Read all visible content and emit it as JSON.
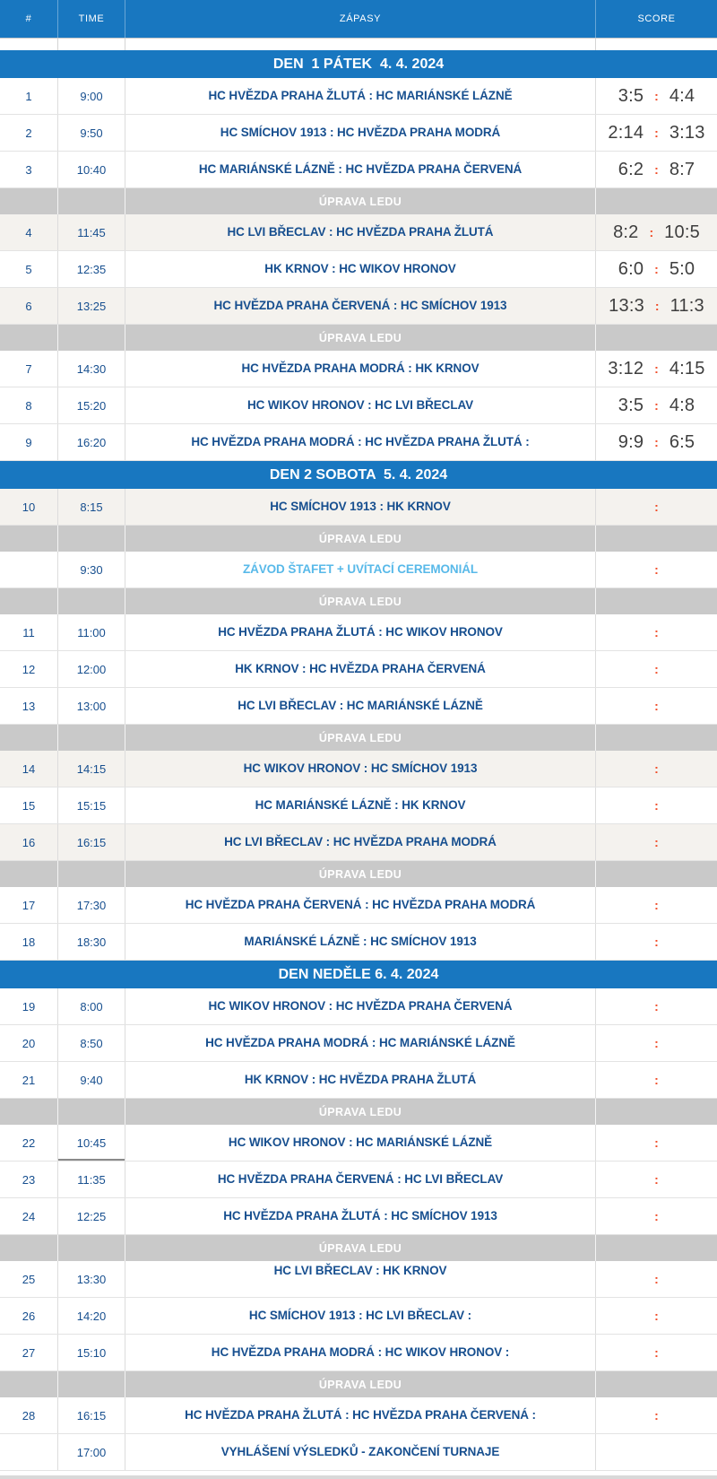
{
  "table_header": {
    "number": "#",
    "time": "TIME",
    "matches": "ZÁPASY",
    "score": "SCORE"
  },
  "colors": {
    "accent_blue": "#1877c0",
    "navy_text": "#174f8f",
    "light_blue_text": "#58b9e9",
    "score_text": "#3e3e3e",
    "score_separator_red": "#f04a25",
    "ice_row_bg": "#c9c9c9",
    "shaded_row_bg": "#f4f2ee"
  },
  "schedule": {
    "score_separator": ":",
    "rows": [
      {
        "type": "day",
        "label": "DEN  1 PÁTEK  4. 4. 2024"
      },
      {
        "type": "match",
        "num": "1",
        "time": "9:00",
        "match": "HC HVĚZDA PRAHA ŽLUTÁ : HC MARIÁNSKÉ LÁZNĚ",
        "score_home": "3:5",
        "score_away": "4:4"
      },
      {
        "type": "match",
        "num": "2",
        "time": "9:50",
        "match": "HC SMÍCHOV 1913 : HC HVĚZDA PRAHA MODRÁ",
        "score_home": "2:14",
        "score_away": "3:13"
      },
      {
        "type": "match",
        "num": "3",
        "time": "10:40",
        "match": "HC MARIÁNSKÉ LÁZNĚ : HC HVĚZDA PRAHA ČERVENÁ",
        "score_home": "6:2",
        "score_away": "8:7"
      },
      {
        "type": "ice",
        "label": "ÚPRAVA LEDU"
      },
      {
        "type": "match",
        "num": "4",
        "time": "11:45",
        "match": "HC LVI BŘECLAV : HC HVĚZDA PRAHA ŽLUTÁ",
        "score_home": "8:2",
        "score_away": "10:5",
        "shaded": true
      },
      {
        "type": "match",
        "num": "5",
        "time": "12:35",
        "match": "HK KRNOV : HC WIKOV HRONOV",
        "score_home": "6:0",
        "score_away": "5:0"
      },
      {
        "type": "match",
        "num": "6",
        "time": "13:25",
        "match": "HC HVĚZDA PRAHA ČERVENÁ : HC SMÍCHOV 1913",
        "score_home": "13:3",
        "score_away": "11:3",
        "shaded": true
      },
      {
        "type": "ice",
        "label": "ÚPRAVA LEDU"
      },
      {
        "type": "match",
        "num": "7",
        "time": "14:30",
        "match": "HC HVĚZDA PRAHA MODRÁ : HK KRNOV",
        "score_home": "3:12",
        "score_away": "4:15"
      },
      {
        "type": "match",
        "num": "8",
        "time": "15:20",
        "match": "HC WIKOV HRONOV : HC LVI BŘECLAV",
        "score_home": "3:5",
        "score_away": "4:8"
      },
      {
        "type": "match",
        "num": "9",
        "time": "16:20",
        "match": "HC HVĚZDA PRAHA MODRÁ : HC HVĚZDA PRAHA ŽLUTÁ :",
        "score_home": "9:9",
        "score_away": "6:5"
      },
      {
        "type": "day",
        "label": "DEN 2 SOBOTA  5. 4. 2024"
      },
      {
        "type": "match",
        "num": "10",
        "time": "8:15",
        "match": "HC SMÍCHOV 1913 : HK KRNOV",
        "score_home": "",
        "score_away": "",
        "shaded": true
      },
      {
        "type": "ice",
        "label": "ÚPRAVA LEDU"
      },
      {
        "type": "match",
        "num": "",
        "time": "9:30",
        "match": "ZÁVOD ŠTAFET + UVÍTACÍ CEREMONIÁL",
        "score_home": "",
        "score_away": "",
        "highlight": true
      },
      {
        "type": "ice",
        "label": "ÚPRAVA LEDU"
      },
      {
        "type": "match",
        "num": "11",
        "time": "11:00",
        "match": "HC HVĚZDA PRAHA ŽLUTÁ : HC WIKOV HRONOV",
        "score_home": "",
        "score_away": ""
      },
      {
        "type": "match",
        "num": "12",
        "time": "12:00",
        "match": "HK KRNOV : HC HVĚZDA PRAHA ČERVENÁ",
        "score_home": "",
        "score_away": ""
      },
      {
        "type": "match",
        "num": "13",
        "time": "13:00",
        "match": "HC LVI BŘECLAV : HC MARIÁNSKÉ LÁZNĚ",
        "score_home": "",
        "score_away": ""
      },
      {
        "type": "ice",
        "label": "ÚPRAVA LEDU"
      },
      {
        "type": "match",
        "num": "14",
        "time": "14:15",
        "match": "HC WIKOV HRONOV : HC SMÍCHOV 1913",
        "score_home": "",
        "score_away": "",
        "shaded": true
      },
      {
        "type": "match",
        "num": "15",
        "time": "15:15",
        "match": "HC MARIÁNSKÉ LÁZNĚ : HK KRNOV",
        "score_home": "",
        "score_away": ""
      },
      {
        "type": "match",
        "num": "16",
        "time": "16:15",
        "match": "HC LVI BŘECLAV : HC HVĚZDA PRAHA MODRÁ",
        "score_home": "",
        "score_away": "",
        "shaded": true
      },
      {
        "type": "ice",
        "label": "ÚPRAVA LEDU"
      },
      {
        "type": "match",
        "num": "17",
        "time": "17:30",
        "match": "HC HVĚZDA PRAHA ČERVENÁ : HC HVĚZDA PRAHA MODRÁ",
        "score_home": "",
        "score_away": ""
      },
      {
        "type": "match",
        "num": "18",
        "time": "18:30",
        "match": "MARIÁNSKÉ LÁZNĚ : HC SMÍCHOV 1913",
        "score_home": "",
        "score_away": ""
      },
      {
        "type": "day",
        "label": "DEN NEDĚLE 6. 4. 2024"
      },
      {
        "type": "match",
        "num": "19",
        "time": "8:00",
        "match": "HC WIKOV HRONOV : HC HVĚZDA PRAHA ČERVENÁ",
        "score_home": "",
        "score_away": ""
      },
      {
        "type": "match",
        "num": "20",
        "time": "8:50",
        "match": "HC HVĚZDA PRAHA MODRÁ : HC MARIÁNSKÉ LÁZNĚ",
        "score_home": "",
        "score_away": ""
      },
      {
        "type": "match",
        "num": "21",
        "time": "9:40",
        "match": "HK KRNOV : HC HVĚZDA PRAHA ŽLUTÁ",
        "score_home": "",
        "score_away": ""
      },
      {
        "type": "ice",
        "label": "ÚPRAVA LEDU"
      },
      {
        "type": "match",
        "num": "22",
        "time": "10:45",
        "match": "HC WIKOV HRONOV : HC MARIÁNSKÉ LÁZNĚ",
        "score_home": "",
        "score_away": "",
        "time_underline": true
      },
      {
        "type": "match",
        "num": "23",
        "time": "11:35",
        "match": "HC HVĚZDA PRAHA ČERVENÁ : HC LVI BŘECLAV",
        "score_home": "",
        "score_away": ""
      },
      {
        "type": "match",
        "num": "24",
        "time": "12:25",
        "match": "HC HVĚZDA PRAHA ŽLUTÁ : HC SMÍCHOV 1913",
        "score_home": "",
        "score_away": ""
      },
      {
        "type": "ice",
        "label": "ÚPRAVA LEDU"
      },
      {
        "type": "match",
        "num": "25",
        "time": "13:30",
        "match": "HC LVI BŘECLAV : HK KRNOV",
        "score_home": "",
        "score_away": "",
        "valign": "top"
      },
      {
        "type": "match",
        "num": "26",
        "time": "14:20",
        "match": "HC SMÍCHOV 1913 : HC LVI BŘECLAV :",
        "score_home": "",
        "score_away": ""
      },
      {
        "type": "match",
        "num": "27",
        "time": "15:10",
        "match": "HC HVĚZDA PRAHA MODRÁ : HC WIKOV HRONOV :",
        "score_home": "",
        "score_away": ""
      },
      {
        "type": "ice",
        "label": "ÚPRAVA LEDU"
      },
      {
        "type": "match",
        "num": "28",
        "time": "16:15",
        "match": "HC HVĚZDA PRAHA ŽLUTÁ : HC HVĚZDA PRAHA ČERVENÁ :",
        "score_home": "",
        "score_away": ""
      },
      {
        "type": "match",
        "num": "",
        "time": "17:00",
        "match": "VYHLÁŠENÍ VÝSLEDKŮ - ZAKONČENÍ TURNAJE",
        "score_home": "",
        "score_away": "",
        "show_sep": false
      }
    ]
  }
}
